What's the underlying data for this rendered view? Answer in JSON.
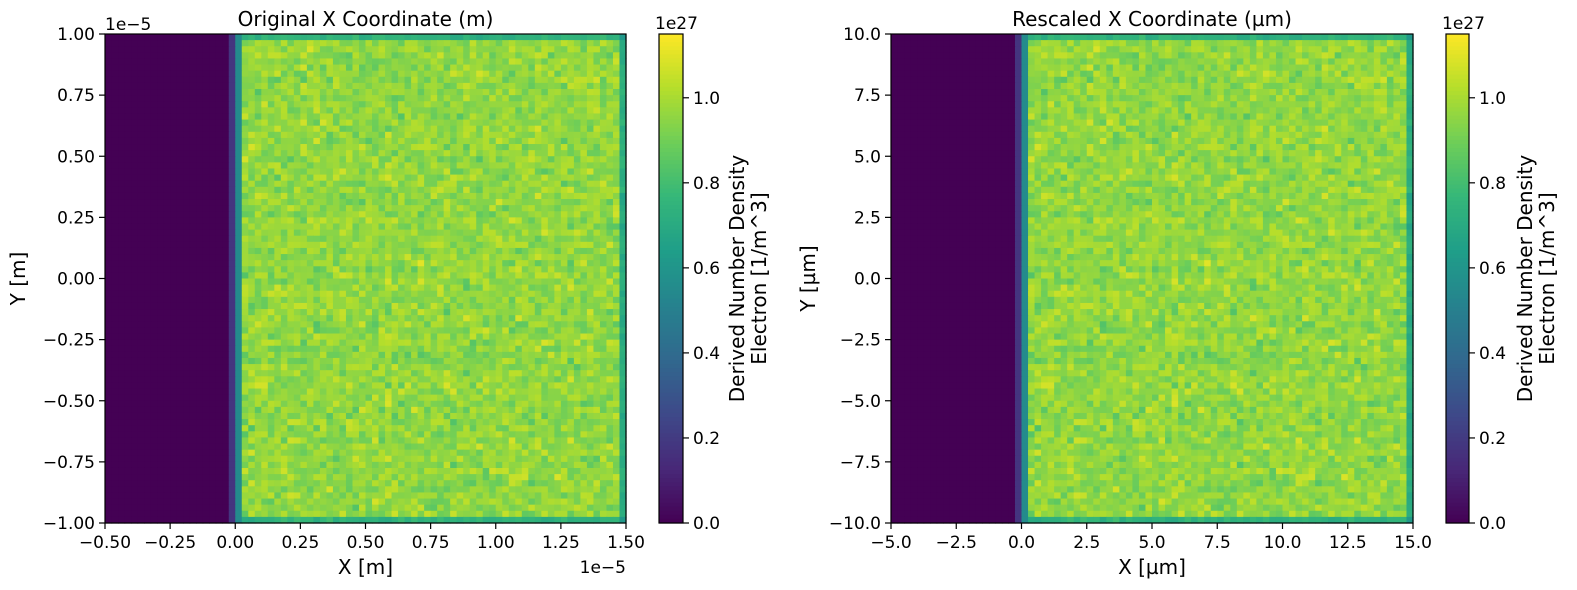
{
  "chart_data": [
    {
      "type": "heatmap",
      "title": "Original X Coordinate (m)",
      "xlabel": "X [m]",
      "ylabel": "Y [m]",
      "xlim": [
        -0.5,
        1.5
      ],
      "ylim": [
        -1.0,
        1.0
      ],
      "x_scale_label": "1e−5",
      "y_scale_label": "1e−5",
      "xticks": [
        "−0.50",
        "−0.25",
        "0.00",
        "0.25",
        "0.50",
        "0.75",
        "1.00",
        "1.25",
        "1.50"
      ],
      "yticks": [
        "−1.00",
        "−0.75",
        "−0.50",
        "−0.25",
        "0.00",
        "0.25",
        "0.50",
        "0.75",
        "1.00"
      ],
      "colorbar": {
        "label_line1": "Derived Number Density",
        "label_line2": "Electron [1/m^3]",
        "scale_label": "1e27",
        "ticks": [
          "0.0",
          "0.2",
          "0.4",
          "0.6",
          "0.8",
          "1.0"
        ],
        "range": [
          0.0,
          1.15
        ],
        "colormap": "viridis"
      },
      "density_profile": {
        "empty_region_x_end": 0.0,
        "empty_value": 0.0,
        "plasma_mean": 0.96,
        "plasma_noise": 0.07
      }
    },
    {
      "type": "heatmap",
      "title": "Rescaled X Coordinate (µm)",
      "xlabel": "X [µm]",
      "ylabel": "Y [µm]",
      "xlim": [
        -5.0,
        15.0
      ],
      "ylim": [
        -10.0,
        10.0
      ],
      "x_scale_label": "",
      "y_scale_label": "",
      "xticks": [
        "−5.0",
        "−2.5",
        "0.0",
        "2.5",
        "5.0",
        "7.5",
        "10.0",
        "12.5",
        "15.0"
      ],
      "yticks": [
        "−10.0",
        "−7.5",
        "−5.0",
        "−2.5",
        "0.0",
        "2.5",
        "5.0",
        "7.5",
        "10.0"
      ],
      "colorbar": {
        "label_line1": "Derived Number Density",
        "label_line2": "Electron [1/m^3]",
        "scale_label": "1e27",
        "ticks": [
          "0.0",
          "0.2",
          "0.4",
          "0.6",
          "0.8",
          "1.0"
        ],
        "range": [
          0.0,
          1.15
        ],
        "colormap": "viridis"
      },
      "density_profile": {
        "empty_region_x_end": 0.0,
        "empty_value": 0.0,
        "plasma_mean": 0.96,
        "plasma_noise": 0.07
      }
    }
  ]
}
